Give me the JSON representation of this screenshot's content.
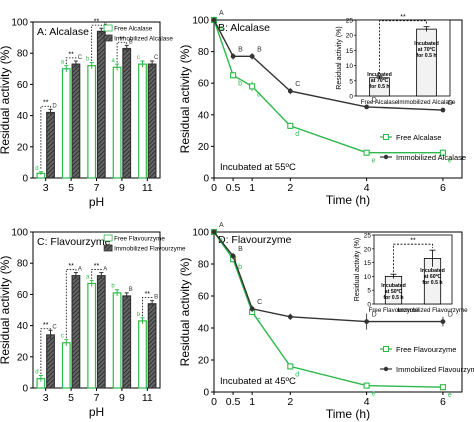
{
  "colors": {
    "free": "#2db84b",
    "immobilized": "#333333",
    "axis": "#000000",
    "inset_free": "#333333"
  },
  "chart_data": [
    {
      "panel": "A",
      "type": "bar",
      "title": "A: Alcalase",
      "xlabel": "pH",
      "ylabel": "Residual activity (%)",
      "ylim": [
        0,
        100
      ],
      "yticks": [
        0,
        20,
        40,
        60,
        80,
        100
      ],
      "categories": [
        "3",
        "5",
        "7",
        "9",
        "11"
      ],
      "legend": "top-right",
      "series": [
        {
          "name": "Free Alcalase",
          "values": [
            3,
            70,
            72,
            71,
            73
          ],
          "errors": [
            1,
            2,
            2,
            2,
            2
          ]
        },
        {
          "name": "Immobilized Alcalase",
          "values": [
            42,
            73,
            94,
            83,
            73
          ],
          "errors": [
            2,
            2,
            2,
            2,
            2
          ]
        }
      ],
      "sig_marks": [
        {
          "cat": 0,
          "text": "**",
          "from": 3,
          "to": 42
        },
        {
          "cat": 1,
          "text": "**",
          "from": 70,
          "to": 73
        },
        {
          "cat": 2,
          "text": "**",
          "from": 72,
          "to": 94
        },
        {
          "cat": 3,
          "text": "**",
          "from": 71,
          "to": 83
        }
      ],
      "letters": {
        "free": [
          "d",
          "a",
          "b",
          "a",
          "c"
        ],
        "immobilized": [
          "D",
          "C",
          "A",
          "B",
          "C"
        ]
      }
    },
    {
      "panel": "B",
      "type": "line",
      "title": "B: Alcalase",
      "xlabel": "Time (h)",
      "ylabel": "Residual activity (%)",
      "xlim": [
        0,
        6.5
      ],
      "ylim": [
        0,
        100
      ],
      "xticks": [
        "0",
        "0.5",
        "1",
        "2",
        "4",
        "6"
      ],
      "xtick_values": [
        0,
        0.5,
        1,
        2,
        4,
        6
      ],
      "yticks": [
        0,
        20,
        40,
        60,
        80,
        100
      ],
      "annotation": "Incubated at 55ºC",
      "legend": "right",
      "series": [
        {
          "name": "Free Alcalase",
          "x": [
            0,
            0.5,
            1,
            2,
            4,
            6
          ],
          "y": [
            100,
            65,
            58,
            33,
            16,
            16
          ],
          "errors": [
            1,
            2,
            3,
            2,
            1,
            2
          ],
          "letters": [
            "a",
            "b",
            "c",
            "d",
            "e",
            "e"
          ]
        },
        {
          "name": "Immobilized Alcalase",
          "x": [
            0,
            0.5,
            1,
            2,
            4,
            6
          ],
          "y": [
            100,
            77,
            77,
            55,
            45,
            43
          ],
          "errors": [
            1,
            2,
            2,
            2,
            1,
            1
          ],
          "letters": [
            "A",
            "B",
            "B",
            "C",
            "D",
            "D"
          ]
        }
      ],
      "inset": {
        "type": "bar",
        "ylabel": "Residual activity (%)",
        "ylim": [
          0,
          25
        ],
        "yticks": [
          0,
          5,
          10,
          15,
          20,
          25
        ],
        "categories": [
          "Free Alcalase",
          "Immobilized Alcalase"
        ],
        "values": [
          6,
          22
        ],
        "errors": [
          0.5,
          0.8
        ],
        "bar_labels": [
          "Incubated at 70ºC for 0.5 h",
          "Incubated at 70ºC for 0.5 h"
        ],
        "sig": "**"
      }
    },
    {
      "panel": "C",
      "type": "bar",
      "title": "C: Flavourzyme",
      "xlabel": "pH",
      "ylabel": "Residual activity (%)",
      "ylim": [
        0,
        100
      ],
      "yticks": [
        0,
        20,
        40,
        60,
        80,
        100
      ],
      "categories": [
        "3",
        "5",
        "7",
        "9",
        "11"
      ],
      "legend": "top-right",
      "series": [
        {
          "name": "Free Flavourzyme",
          "values": [
            6,
            29,
            67,
            61,
            43
          ],
          "errors": [
            2,
            2,
            2,
            2,
            2
          ]
        },
        {
          "name": "Immobilized Flavourzyme",
          "values": [
            34,
            72,
            72,
            59,
            54
          ],
          "errors": [
            3,
            2,
            2,
            2,
            2
          ]
        }
      ],
      "sig_marks": [
        {
          "cat": 0,
          "text": "**",
          "from": 6,
          "to": 34
        },
        {
          "cat": 1,
          "text": "**",
          "from": 29,
          "to": 72
        },
        {
          "cat": 2,
          "text": "**",
          "from": 67,
          "to": 72
        },
        {
          "cat": 4,
          "text": "**",
          "from": 43,
          "to": 54
        }
      ],
      "letters": {
        "free": [
          "d",
          "c",
          "a",
          "b",
          "b"
        ],
        "immobilized": [
          "C",
          "A",
          "A",
          "B",
          "B"
        ]
      }
    },
    {
      "panel": "D",
      "type": "line",
      "title": "D: Flavourzyme",
      "xlabel": "Time (h)",
      "ylabel": "Residual activity (%)",
      "xlim": [
        0,
        6.5
      ],
      "ylim": [
        0,
        100
      ],
      "xticks": [
        "0",
        "0.5",
        "1",
        "2",
        "4",
        "6"
      ],
      "xtick_values": [
        0,
        0.5,
        1,
        2,
        4,
        6
      ],
      "yticks": [
        0,
        20,
        40,
        60,
        80,
        100
      ],
      "annotation": "Incubated at 45ºC",
      "legend": "bottom-right",
      "series": [
        {
          "name": "Free Flavourzyme",
          "x": [
            0,
            0.5,
            1,
            2,
            4,
            6
          ],
          "y": [
            100,
            83,
            50,
            16,
            4,
            3
          ],
          "errors": [
            1,
            2,
            2,
            2,
            1,
            1
          ],
          "letters": [
            "a",
            "b",
            "c",
            "d",
            "e",
            "e"
          ]
        },
        {
          "name": "Immobilized Flavourzyme",
          "x": [
            0,
            0.5,
            1,
            2,
            4,
            6
          ],
          "y": [
            100,
            85,
            52,
            47,
            44,
            44
          ],
          "errors": [
            1,
            2,
            2,
            2,
            5,
            3
          ],
          "letters": [
            "A",
            "B",
            "C",
            "",
            "D",
            "D"
          ]
        }
      ],
      "inset": {
        "type": "bar",
        "ylabel": "Residual activity (%)",
        "ylim": [
          0,
          25
        ],
        "yticks": [
          0,
          5,
          10,
          15,
          20,
          25
        ],
        "categories": [
          "Free Flavourzyme",
          "Immobilized Flavourzyme"
        ],
        "values": [
          10,
          16.5
        ],
        "errors": [
          0.8,
          3
        ],
        "bar_labels": [
          "Incubated at 50ºC for 0.5 h",
          "Incubated at 60ºC for 0.5 h"
        ],
        "sig": "**"
      }
    }
  ]
}
